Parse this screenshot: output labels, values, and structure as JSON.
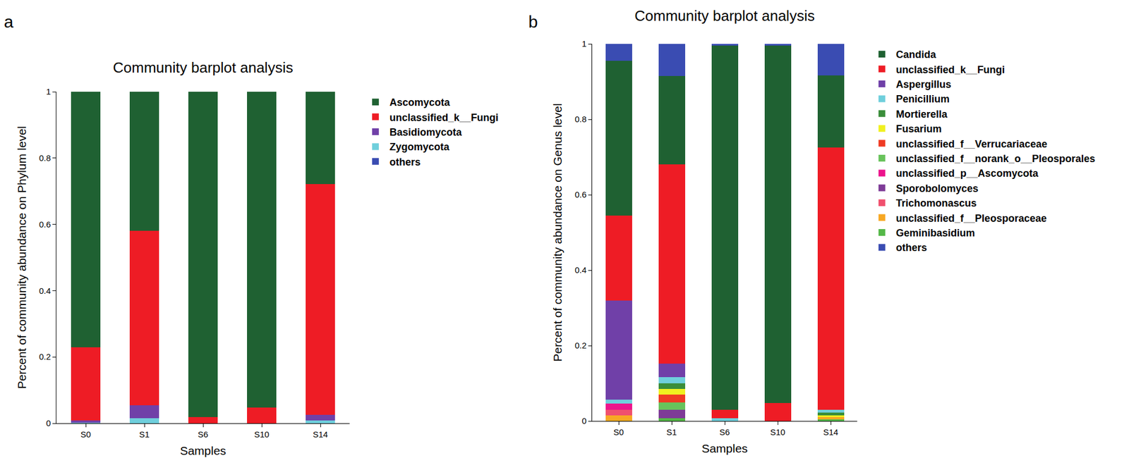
{
  "chart_data": [
    {
      "type": "bar",
      "stacked": true,
      "title": "Community barplot analysis",
      "annotations": [
        "a"
      ],
      "x_label": "Samples",
      "y_label": "Percent of community abundance on Phylum level",
      "categories": [
        "S0",
        "S1",
        "S6",
        "S10",
        "S14"
      ],
      "ylim": [
        0,
        1
      ],
      "yticks": [
        0,
        0.2,
        0.4,
        0.6,
        0.8,
        1
      ],
      "grid": false,
      "legend": "right",
      "series": [
        {
          "name": "Ascomycota",
          "color": "#1f6132",
          "values": [
            0.77,
            0.42,
            0.982,
            0.952,
            0.279
          ]
        },
        {
          "name": "unclassified_k__Fungi",
          "color": "#ee1c25",
          "values": [
            0.222,
            0.525,
            0.018,
            0.048,
            0.695
          ]
        },
        {
          "name": "Basidiomycota",
          "color": "#7040a8",
          "values": [
            0.007,
            0.04,
            0,
            0,
            0.018
          ]
        },
        {
          "name": "Zygomycota",
          "color": "#6fcfdc",
          "values": [
            0.001,
            0.015,
            0,
            0,
            0.008
          ]
        },
        {
          "name": "others",
          "color": "#3a4cb2",
          "values": [
            0,
            0,
            0,
            0,
            0
          ]
        }
      ]
    },
    {
      "type": "bar",
      "stacked": true,
      "title": "Community barplot analysis",
      "annotations": [
        "b"
      ],
      "x_label": "Samples",
      "y_label": "Percent of community abundance on Genus level",
      "categories": [
        "S0",
        "S1",
        "S6",
        "S10",
        "S14"
      ],
      "ylim": [
        0,
        1
      ],
      "yticks": [
        0,
        0.2,
        0.4,
        0.6,
        0.8,
        1
      ],
      "grid": false,
      "legend": "right",
      "series": [
        {
          "name": "Candida",
          "color": "#1f6132",
          "values": [
            0.41,
            0.235,
            0.965,
            0.948,
            0.192
          ]
        },
        {
          "name": "unclassified_k__Fungi",
          "color": "#ee1c25",
          "values": [
            0.225,
            0.528,
            0.022,
            0.048,
            0.695
          ]
        },
        {
          "name": "Aspergillus",
          "color": "#7040a8",
          "values": [
            0.263,
            0.035,
            0,
            0,
            0
          ]
        },
        {
          "name": "Penicillium",
          "color": "#6fcfdc",
          "values": [
            0.01,
            0.017,
            0.008,
            0,
            0.008
          ]
        },
        {
          "name": "Mortierella",
          "color": "#3a8d3a",
          "values": [
            0,
            0.015,
            0,
            0,
            0.007
          ]
        },
        {
          "name": "Fusarium",
          "color": "#f0f020",
          "values": [
            0,
            0.015,
            0,
            0,
            0.005
          ]
        },
        {
          "name": "unclassified_f__Verrucariaceae",
          "color": "#ef3b24",
          "values": [
            0,
            0.02,
            0,
            0,
            0
          ]
        },
        {
          "name": "unclassified_f__norank_o__Pleosporales",
          "color": "#68c35b",
          "values": [
            0,
            0.02,
            0,
            0,
            0
          ]
        },
        {
          "name": "unclassified_p__Ascomycota",
          "color": "#ec148c",
          "values": [
            0.017,
            0,
            0,
            0,
            0
          ]
        },
        {
          "name": "Sporobolomyces",
          "color": "#7e3b97",
          "values": [
            0,
            0.022,
            0,
            0,
            0
          ]
        },
        {
          "name": "Trichomonascus",
          "color": "#f0506e",
          "values": [
            0.015,
            0,
            0,
            0,
            0
          ]
        },
        {
          "name": "unclassified_f__Pleosporaceae",
          "color": "#f7a823",
          "values": [
            0.015,
            0,
            0,
            0,
            0.005
          ]
        },
        {
          "name": "Geminibasidium",
          "color": "#55b848",
          "values": [
            0,
            0.008,
            0,
            0,
            0.005
          ]
        },
        {
          "name": "others",
          "color": "#3a4cb2",
          "values": [
            0.045,
            0.085,
            0.005,
            0.004,
            0.083
          ]
        }
      ]
    }
  ]
}
